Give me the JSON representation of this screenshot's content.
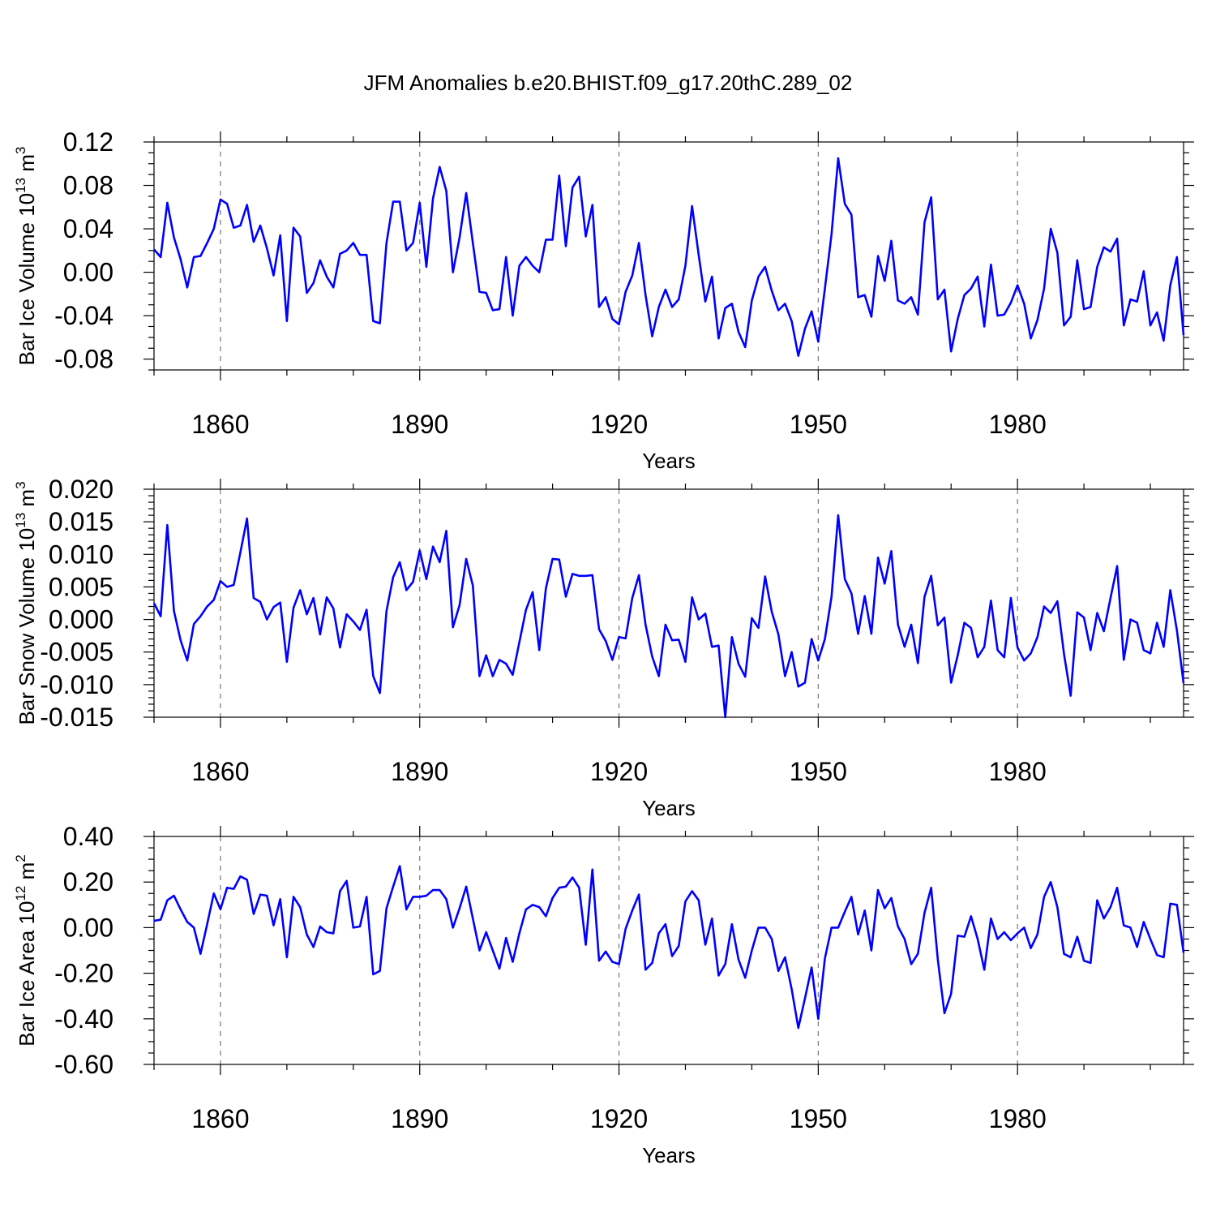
{
  "chart_data": {
    "title": "JFM Anomalies b.e20.BHIST.f09_g17.20thC.289_02",
    "x_start": 1850,
    "x_end": 2005,
    "xlim": [
      1850,
      2005
    ],
    "x_ticks": [
      1860,
      1890,
      1920,
      1950,
      1980
    ],
    "x_tick_labels": [
      "1860",
      "1890",
      "1920",
      "1950",
      "1980"
    ],
    "grid": "vertical dashed at major x ticks",
    "line_color": "#0000ff",
    "panels": [
      {
        "type": "line",
        "ylabel_main": "Bar Ice Volume 10",
        "ylabel_exp": "13",
        "ylabel_unit": " m",
        "ylabel_unit_exp": "3",
        "xlabel": "Years",
        "ylim": [
          -0.09,
          0.12
        ],
        "y_ticks": [
          0.12,
          0.08,
          0.04,
          0.0,
          -0.04,
          -0.08
        ],
        "y_tick_labels": [
          "0.12",
          "0.08",
          "0.04",
          "0.00",
          "-0.04",
          "-0.08"
        ],
        "y_minor_step": 0.01,
        "values": [
          0.021,
          0.014,
          0.064,
          0.032,
          0.012,
          -0.014,
          0.014,
          0.015,
          0.027,
          0.04,
          0.067,
          0.063,
          0.041,
          0.043,
          0.062,
          0.028,
          0.043,
          0.022,
          -0.003,
          0.034,
          -0.045,
          0.041,
          0.033,
          -0.019,
          -0.01,
          0.011,
          -0.004,
          -0.014,
          0.017,
          0.02,
          0.027,
          0.016,
          0.016,
          -0.045,
          -0.047,
          0.027,
          0.065,
          0.065,
          0.02,
          0.027,
          0.064,
          0.005,
          0.068,
          0.097,
          0.075,
          0.0,
          0.032,
          0.073,
          0.027,
          -0.018,
          -0.019,
          -0.035,
          -0.034,
          0.014,
          -0.04,
          0.006,
          0.014,
          0.006,
          0.0,
          0.03,
          0.03,
          0.089,
          0.024,
          0.078,
          0.088,
          0.033,
          0.062,
          -0.032,
          -0.023,
          -0.043,
          -0.048,
          -0.018,
          -0.003,
          0.027,
          -0.021,
          -0.059,
          -0.032,
          -0.016,
          -0.032,
          -0.025,
          0.006,
          0.061,
          0.016,
          -0.027,
          -0.004,
          -0.061,
          -0.033,
          -0.029,
          -0.055,
          -0.069,
          -0.026,
          -0.004,
          0.005,
          -0.017,
          -0.035,
          -0.029,
          -0.045,
          -0.077,
          -0.052,
          -0.036,
          -0.064,
          -0.015,
          0.035,
          0.105,
          0.063,
          0.053,
          -0.023,
          -0.021,
          -0.041,
          0.015,
          -0.008,
          0.029,
          -0.026,
          -0.029,
          -0.023,
          -0.039,
          0.046,
          0.069,
          -0.025,
          -0.016,
          -0.073,
          -0.043,
          -0.021,
          -0.015,
          -0.004,
          -0.05,
          0.007,
          -0.04,
          -0.039,
          -0.028,
          -0.012,
          -0.029,
          -0.061,
          -0.044,
          -0.015,
          0.04,
          0.018,
          -0.049,
          -0.041,
          0.011,
          -0.034,
          -0.032,
          0.005,
          0.023,
          0.019,
          0.031,
          -0.049,
          -0.025,
          -0.027,
          0.001,
          -0.049,
          -0.037,
          -0.063,
          -0.012,
          0.014,
          -0.058
        ]
      },
      {
        "type": "line",
        "ylabel_main": "Bar Snow Volume 10",
        "ylabel_exp": "13",
        "ylabel_unit": " m",
        "ylabel_unit_exp": "3",
        "xlabel": "Years",
        "ylim": [
          -0.015,
          0.02
        ],
        "y_ticks": [
          0.02,
          0.015,
          0.01,
          0.005,
          0.0,
          -0.005,
          -0.01,
          -0.015
        ],
        "y_tick_labels": [
          "0.020",
          "0.015",
          "0.010",
          "0.005",
          "0.000",
          "-0.005",
          "-0.010",
          "-0.015"
        ],
        "y_minor_step": 0.001,
        "values": [
          0.0025,
          0.0005,
          0.0145,
          0.0013,
          -0.0032,
          -0.0063,
          -0.0007,
          0.0005,
          0.002,
          0.003,
          0.0059,
          0.005,
          0.0053,
          0.0103,
          0.0155,
          0.0033,
          0.0027,
          0.0,
          0.0019,
          0.0026,
          -0.0065,
          0.0018,
          0.0045,
          0.0008,
          0.0033,
          -0.0023,
          0.0034,
          0.0017,
          -0.0043,
          0.0008,
          -0.0003,
          -0.0016,
          0.0015,
          -0.0087,
          -0.0113,
          0.0013,
          0.0065,
          0.0088,
          0.0045,
          0.0058,
          0.0106,
          0.0062,
          0.0112,
          0.0088,
          0.0136,
          -0.0012,
          0.0022,
          0.0093,
          0.0052,
          -0.0087,
          -0.0055,
          -0.0087,
          -0.0062,
          -0.0068,
          -0.0085,
          -0.0035,
          0.0015,
          0.0042,
          -0.0047,
          0.0048,
          0.0093,
          0.0092,
          0.0035,
          0.007,
          0.0067,
          0.0067,
          0.0068,
          -0.0015,
          -0.0033,
          -0.0062,
          -0.0027,
          -0.0029,
          0.0033,
          0.0068,
          -0.0008,
          -0.0057,
          -0.0087,
          -0.0008,
          -0.0032,
          -0.0031,
          -0.0065,
          0.0034,
          0.0,
          0.0009,
          -0.0042,
          -0.004,
          -0.015,
          -0.0027,
          -0.0068,
          -0.0088,
          0.0002,
          -0.0013,
          0.0066,
          0.0012,
          -0.0023,
          -0.0087,
          -0.005,
          -0.0103,
          -0.0097,
          -0.003,
          -0.0063,
          -0.003,
          0.0035,
          0.016,
          0.0062,
          0.004,
          -0.0022,
          0.0036,
          -0.0022,
          0.0095,
          0.0055,
          0.0105,
          -0.0008,
          -0.0042,
          -0.0008,
          -0.0067,
          0.0035,
          0.0067,
          -0.0009,
          0.0003,
          -0.0097,
          -0.0055,
          -0.0005,
          -0.0013,
          -0.0058,
          -0.0042,
          0.0029,
          -0.0047,
          -0.0058,
          0.0033,
          -0.0043,
          -0.0063,
          -0.0052,
          -0.0027,
          0.002,
          0.001,
          0.0028,
          -0.0053,
          -0.0117,
          0.0011,
          0.0003,
          -0.0047,
          0.001,
          -0.0018,
          0.0033,
          0.0082,
          -0.0062,
          0.0,
          -0.0005,
          -0.0047,
          -0.0052,
          -0.0005,
          -0.0042,
          0.0045,
          -0.0017,
          -0.0098
        ]
      },
      {
        "type": "line",
        "ylabel_main": "Bar Ice Area 10",
        "ylabel_exp": "12",
        "ylabel_unit": " m",
        "ylabel_unit_exp": "2",
        "xlabel": "Years",
        "ylim": [
          -0.6,
          0.4
        ],
        "y_ticks": [
          0.4,
          0.2,
          0.0,
          -0.2,
          -0.4,
          -0.6
        ],
        "y_tick_labels": [
          "0.40",
          "0.20",
          "0.00",
          "-0.20",
          "-0.40",
          "-0.60"
        ],
        "y_minor_step": 0.05,
        "values": [
          0.03,
          0.035,
          0.12,
          0.14,
          0.08,
          0.025,
          0.0,
          -0.115,
          0.015,
          0.15,
          0.08,
          0.175,
          0.17,
          0.225,
          0.21,
          0.06,
          0.145,
          0.14,
          0.01,
          0.125,
          -0.13,
          0.135,
          0.09,
          -0.03,
          -0.085,
          0.005,
          -0.02,
          -0.025,
          0.16,
          0.205,
          0.0,
          0.005,
          0.135,
          -0.205,
          -0.19,
          0.085,
          0.18,
          0.27,
          0.08,
          0.135,
          0.135,
          0.14,
          0.165,
          0.165,
          0.125,
          0.0,
          0.085,
          0.18,
          0.04,
          -0.1,
          -0.02,
          -0.1,
          -0.18,
          -0.045,
          -0.15,
          -0.025,
          0.08,
          0.1,
          0.09,
          0.05,
          0.13,
          0.175,
          0.18,
          0.22,
          0.175,
          -0.075,
          0.255,
          -0.145,
          -0.105,
          -0.15,
          -0.16,
          -0.005,
          0.075,
          0.145,
          -0.185,
          -0.155,
          -0.025,
          0.015,
          -0.125,
          -0.08,
          0.115,
          0.16,
          0.12,
          -0.075,
          0.04,
          -0.21,
          -0.16,
          0.015,
          -0.14,
          -0.22,
          -0.1,
          0.0,
          0.0,
          -0.05,
          -0.19,
          -0.13,
          -0.27,
          -0.44,
          -0.31,
          -0.175,
          -0.4,
          -0.135,
          0.0,
          0.0,
          0.07,
          0.135,
          -0.03,
          0.075,
          -0.1,
          0.165,
          0.085,
          0.13,
          0.005,
          -0.05,
          -0.16,
          -0.115,
          0.065,
          0.175,
          -0.14,
          -0.375,
          -0.29,
          -0.035,
          -0.04,
          0.05,
          -0.05,
          -0.185,
          0.04,
          -0.05,
          -0.02,
          -0.055,
          -0.025,
          0.0,
          -0.09,
          -0.03,
          0.135,
          0.2,
          0.09,
          -0.115,
          -0.13,
          -0.04,
          -0.145,
          -0.155,
          0.12,
          0.04,
          0.09,
          0.175,
          0.01,
          0.0,
          -0.085,
          0.025,
          -0.05,
          -0.12,
          -0.13,
          0.105,
          0.1,
          -0.11
        ]
      }
    ]
  }
}
